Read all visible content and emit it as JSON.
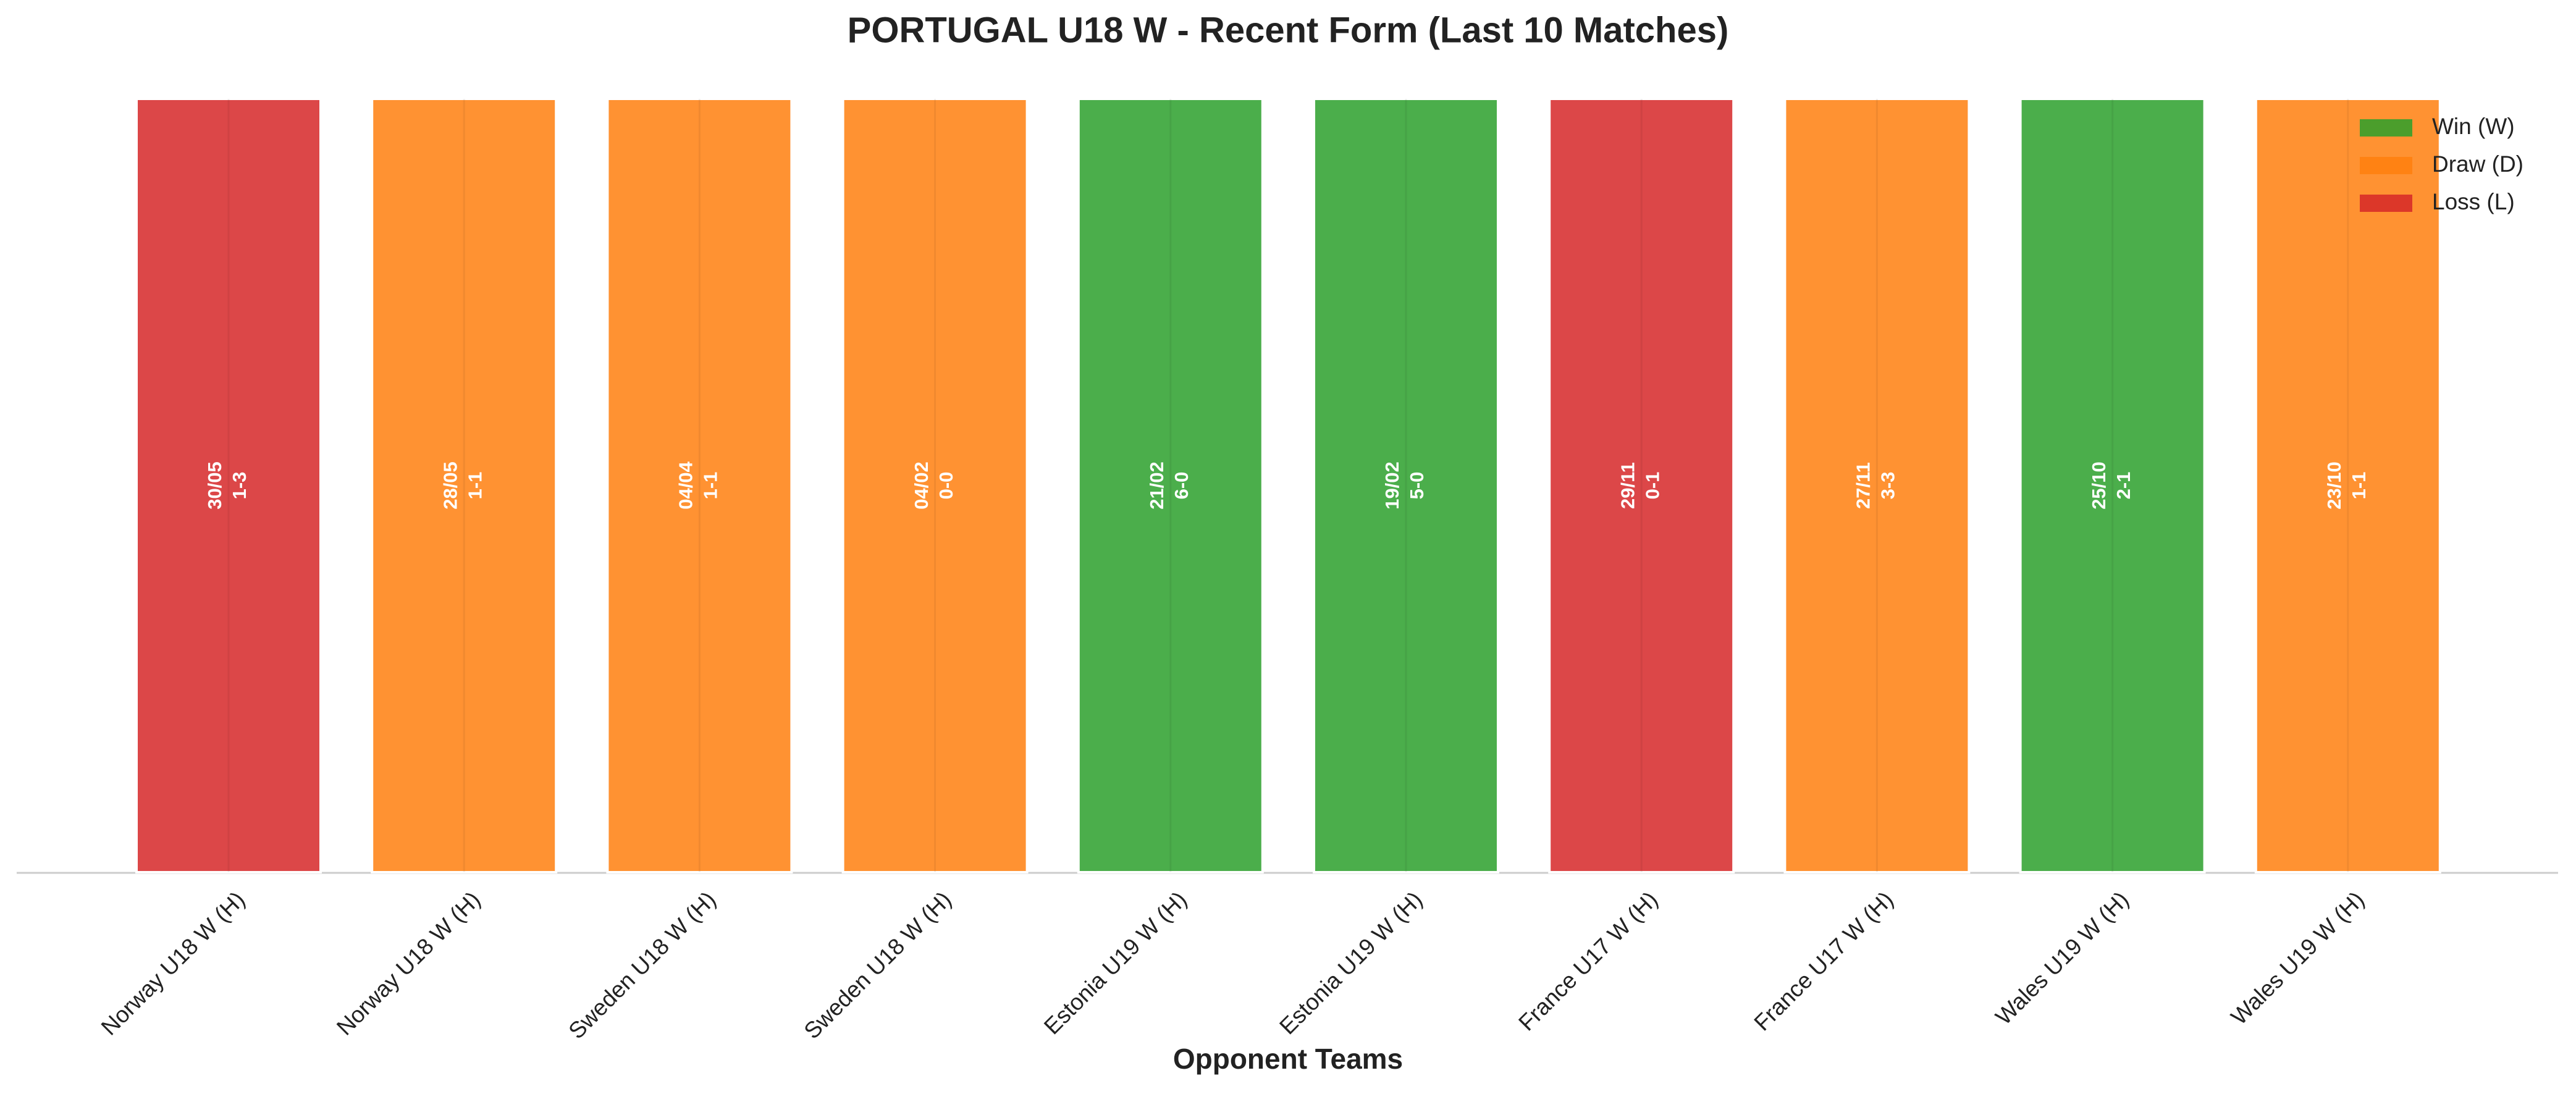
{
  "chart_data": {
    "type": "bar",
    "title": "PORTUGAL U18 W - Recent Form (Last 10 Matches)",
    "x_label": "Opponent Teams",
    "categories": [
      "Norway U18 W (H)",
      "Norway U18 W (H)",
      "Sweden U18 W (H)",
      "Sweden U18 W (H)",
      "Estonia U19 W (H)",
      "Estonia U19 W (H)",
      "France U17 W (H)",
      "France U17 W (H)",
      "Wales U19 W (H)",
      "Wales U19 W (H)"
    ],
    "values": [
      1,
      1,
      1,
      1,
      1,
      1,
      1,
      1,
      1,
      1
    ],
    "dates": [
      "30/05",
      "28/05",
      "04/04",
      "04/02",
      "21/02",
      "19/02",
      "29/11",
      "27/11",
      "25/10",
      "23/10"
    ],
    "scores": [
      "1-3",
      "1-1",
      "1-1",
      "0-0",
      "6-0",
      "5-0",
      "0-1",
      "3-3",
      "2-1",
      "1-1"
    ],
    "colors": [
      "#d62728",
      "#ff7f0e",
      "#ff7f0e",
      "#ff7f0e",
      "#2ca02c",
      "#2ca02c",
      "#d62728",
      "#ff7f0e",
      "#2ca02c",
      "#ff7f0e"
    ],
    "ylim": [
      0,
      1
    ],
    "legend": [
      {
        "name": "Win (W)",
        "color": "#2ca02c"
      },
      {
        "name": "Draw (D)",
        "color": "#ff7f0e"
      },
      {
        "name": "Loss (L)",
        "color": "#d62728"
      }
    ],
    "legend_position": "upper right"
  }
}
